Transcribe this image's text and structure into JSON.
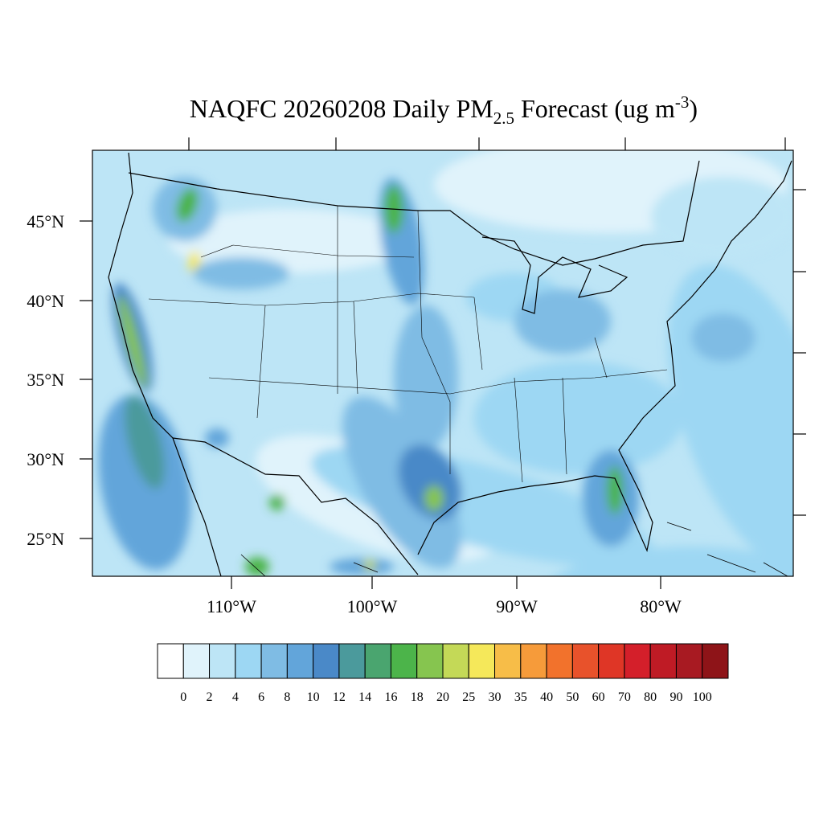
{
  "title": [
    "NAQFC 20260208 Daily PM",
    "2.5",
    " Forecast (ug m",
    "-3",
    ")"
  ],
  "lat_labels": [
    "45°N",
    "40°N",
    "35°N",
    "30°N",
    "25°N"
  ],
  "lon_labels": [
    "110°W",
    "100°W",
    "90°W",
    "80°W"
  ],
  "colorbar": {
    "levels": [
      0,
      2,
      4,
      6,
      8,
      10,
      12,
      14,
      16,
      18,
      20,
      25,
      30,
      35,
      40,
      50,
      60,
      70,
      80,
      90,
      100
    ],
    "colors": [
      "#ffffff",
      "#e0f3fb",
      "#bde5f6",
      "#9dd7f3",
      "#7fbce4",
      "#62a5da",
      "#4a89c8",
      "#4b9a9c",
      "#4aa56f",
      "#4cb44a",
      "#86c54f",
      "#c4d957",
      "#f5e85a",
      "#f7bd48",
      "#f69b3a",
      "#f2722c",
      "#e8522b",
      "#df3626",
      "#d41f2a",
      "#bf1b25",
      "#a81a22",
      "#8e1418"
    ]
  }
}
